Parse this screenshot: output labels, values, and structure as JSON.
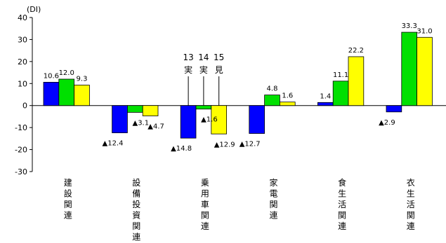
{
  "chart_data": {
    "type": "bar",
    "title": "",
    "unit_label": "(DI)",
    "ylim": [
      -30,
      40
    ],
    "yticks": [
      40,
      30,
      20,
      10,
      0,
      -10,
      -20,
      -30
    ],
    "grid": false,
    "colors": [
      "#0000ff",
      "#00e000",
      "#ffff00"
    ],
    "categories": [
      "建設関連",
      "設備投資関連",
      "乗用車関連",
      "家電関連",
      "食生活関連",
      "衣生活関連"
    ],
    "series": [
      {
        "values": [
          10.6,
          -12.4,
          -14.8,
          -12.7,
          1.4,
          -2.9
        ]
      },
      {
        "values": [
          12.0,
          -3.1,
          -1.6,
          4.8,
          11.1,
          33.3
        ]
      },
      {
        "values": [
          9.3,
          -4.7,
          -12.9,
          1.6,
          22.2,
          31.0
        ]
      }
    ],
    "data_labels": [
      [
        "10.6",
        "▲12.4",
        "▲14.8",
        "▲12.7",
        "1.4",
        "▲2.9"
      ],
      [
        "12.0",
        "▲3.1",
        "▲1.6",
        "4.8",
        "11.1",
        "33.3"
      ],
      [
        "9.3",
        "▲4.7",
        "▲12.9",
        "1.6",
        "22.2",
        "31.0"
      ]
    ],
    "legend_annotations": [
      {
        "number": "13",
        "kind": "実"
      },
      {
        "number": "14",
        "kind": "実"
      },
      {
        "number": "15",
        "kind": "見"
      }
    ]
  }
}
